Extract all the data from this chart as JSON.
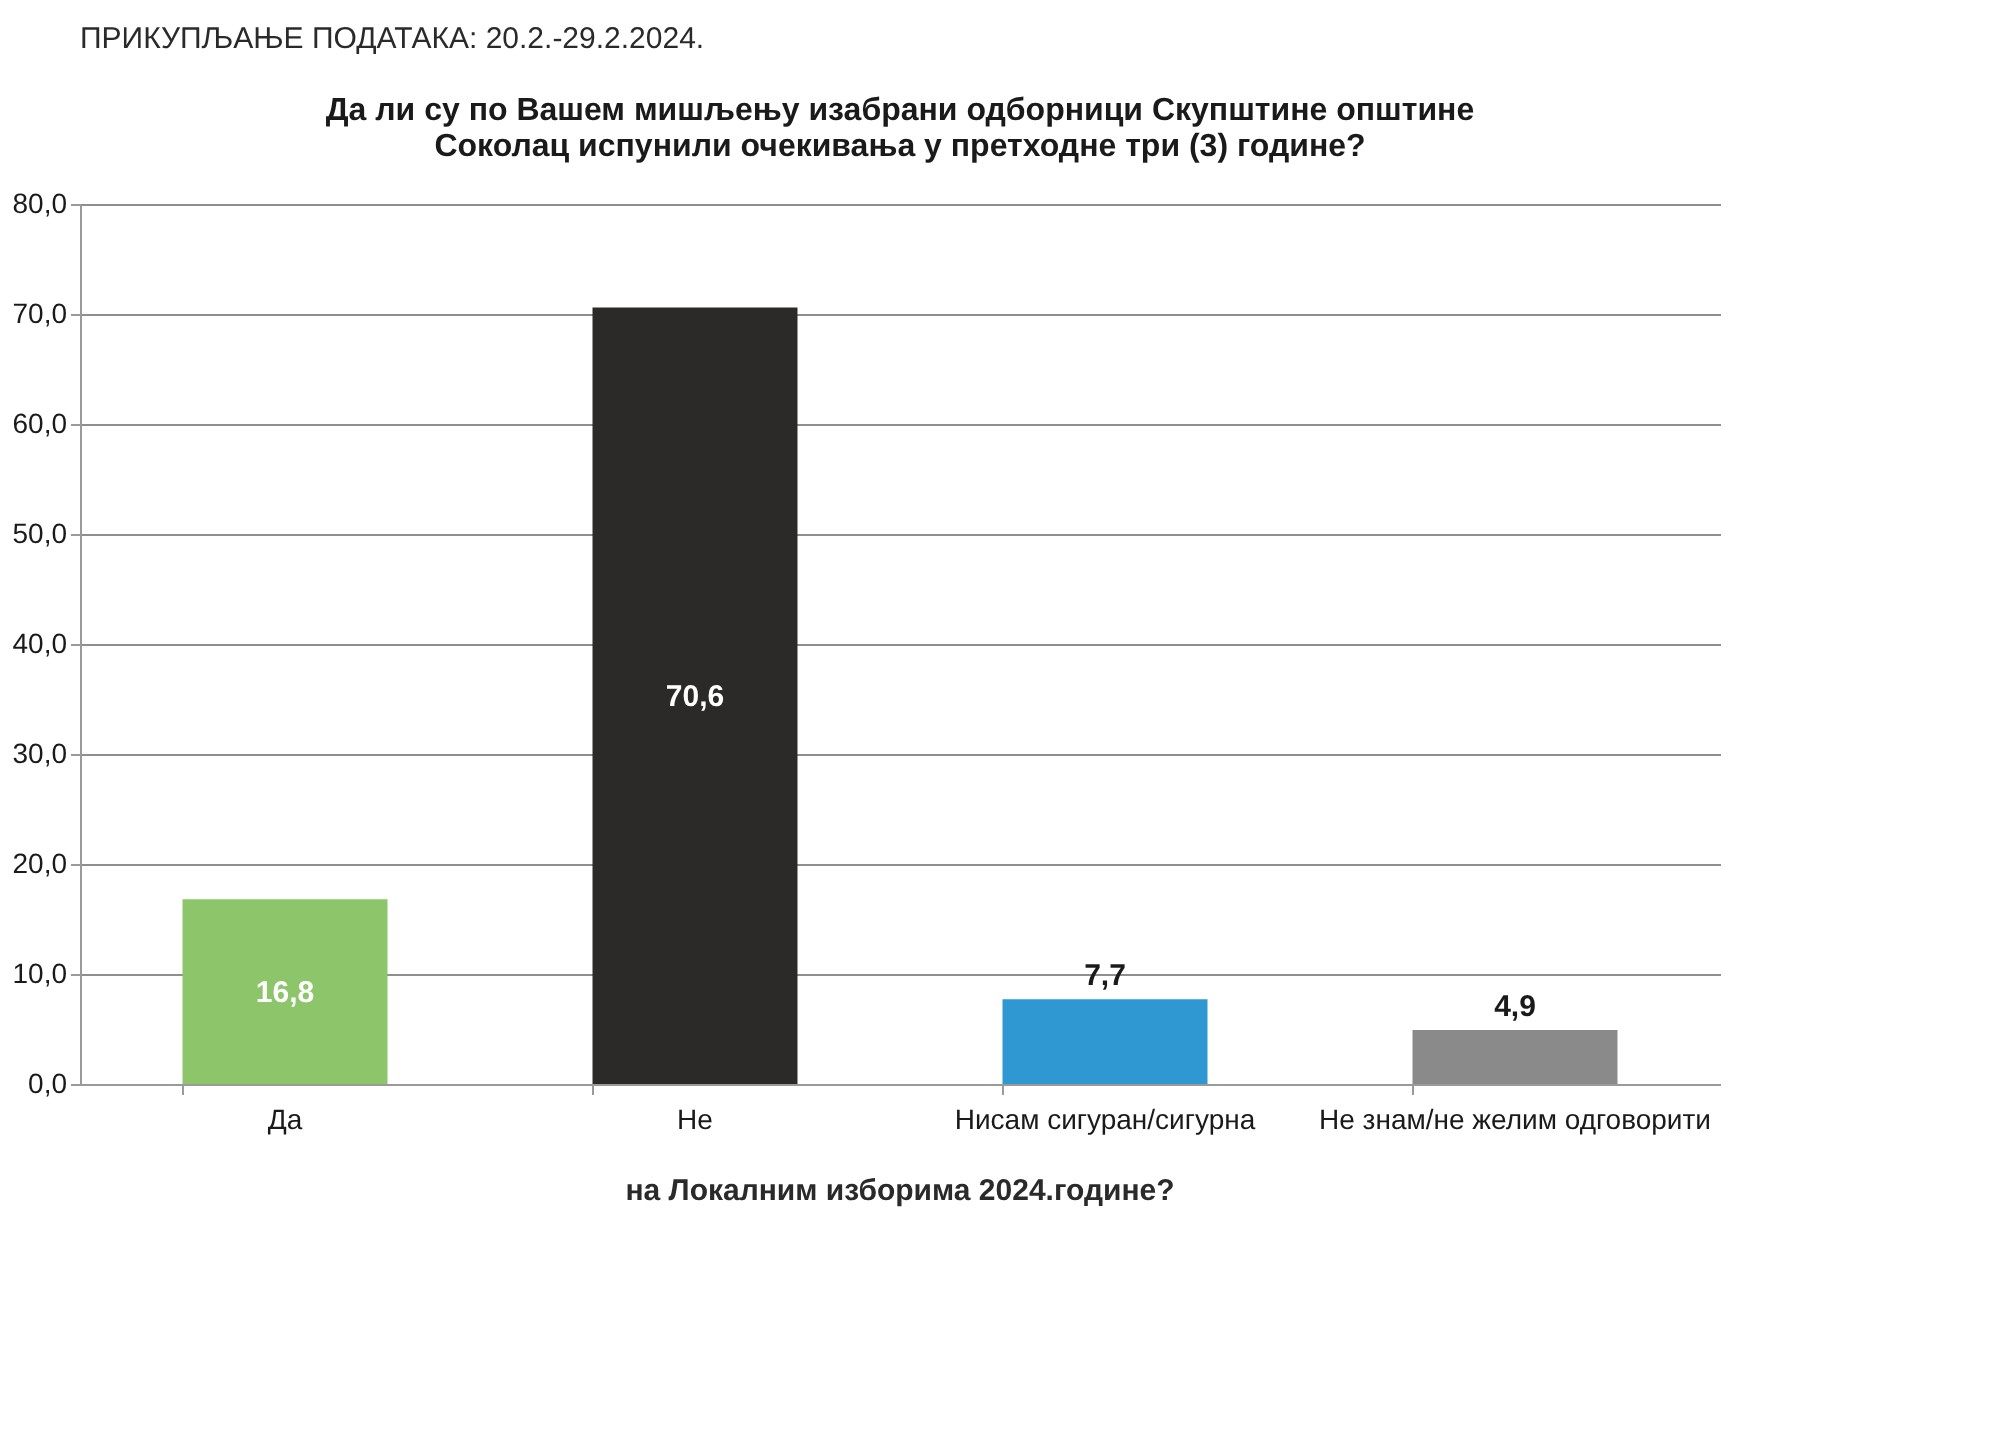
{
  "chart_data": {
    "type": "bar",
    "title": "Да ли су по Вашем мишљењу изабрани одборници Скупштине општине Соколац испунили очекивања у претходне три (3) године?",
    "categories": [
      "Да",
      "Не",
      "Нисам сигуран/сигурна",
      "Не знам/не желим одговорити"
    ],
    "values": [
      16.8,
      70.6,
      7.7,
      4.9
    ],
    "colors": [
      "#8cc56a",
      "#2b2a28",
      "#2f97d2",
      "#8a8a8a"
    ],
    "value_labels": [
      "16,8",
      "70,6",
      "7,7",
      "4,9"
    ],
    "ylim": [
      0,
      80
    ],
    "yticks": [
      {
        "value": 0,
        "label": "0,0"
      },
      {
        "value": 10,
        "label": "10,0"
      },
      {
        "value": 20,
        "label": "20,0"
      },
      {
        "value": 30,
        "label": "30,0"
      },
      {
        "value": 40,
        "label": "40,0"
      },
      {
        "value": 50,
        "label": "50,0"
      },
      {
        "value": 60,
        "label": "60,0"
      },
      {
        "value": 70,
        "label": "70,0"
      },
      {
        "value": 80,
        "label": "80,0"
      }
    ],
    "grid": "y",
    "legend": false,
    "annotations": [
      "ПРИКУПЉАЊЕ ПОДАТАКА: 20.2.-29.2.2024.",
      "на Локалним изборима 2024.године?"
    ]
  }
}
